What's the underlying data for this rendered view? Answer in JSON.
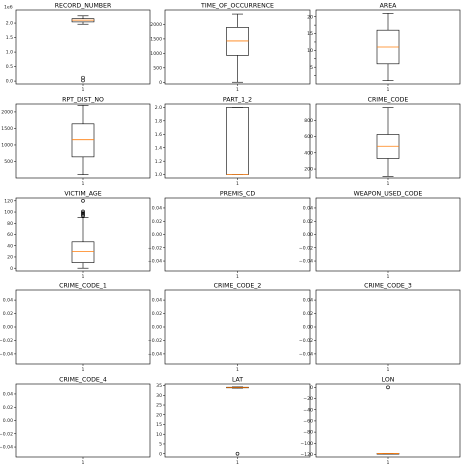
{
  "chart_data": [
    {
      "type": "box",
      "title": "RECORD_NUMBER",
      "offset_text": "1e6",
      "x_tick": "1",
      "ylim": [
        -0.1,
        2.45
      ],
      "y_ticks": [
        0.0,
        0.5,
        1.0,
        1.5,
        2.0
      ],
      "y_tick_labels": [
        "0.0",
        "0.5",
        "1.0",
        "1.5",
        "2.0"
      ],
      "box": {
        "whislo": 1.96,
        "q1": 2.04,
        "med": 2.1,
        "q3": 2.15,
        "whishi": 2.25
      },
      "fliers": [
        0.02,
        0.12
      ]
    },
    {
      "type": "box",
      "title": "TIME_OF_OCCURRENCE",
      "x_tick": "1",
      "ylim": [
        -60,
        2500
      ],
      "y_ticks": [
        0,
        500,
        1000,
        1500,
        2000
      ],
      "y_tick_labels": [
        "0",
        "500",
        "1000",
        "1500",
        "2000"
      ],
      "box": {
        "whislo": 1,
        "q1": 930,
        "med": 1430,
        "q3": 1900,
        "whishi": 2359
      },
      "fliers": []
    },
    {
      "type": "box",
      "title": "AREA",
      "x_tick": "1",
      "ylim": [
        0,
        22
      ],
      "y_ticks": [
        2.5,
        5.0,
        7.5,
        10.0,
        12.5,
        15.0,
        17.5,
        20.0
      ],
      "y_tick_labels": [
        "",
        "5",
        "",
        "10",
        "",
        "15",
        "",
        "20"
      ],
      "box": {
        "whislo": 1,
        "q1": 6,
        "med": 11,
        "q3": 16,
        "whishi": 21
      },
      "fliers": []
    },
    {
      "type": "box",
      "title": "RPT_DIST_NO",
      "x_tick": "1",
      "ylim": [
        0,
        2240
      ],
      "y_ticks": [
        500,
        1000,
        1500,
        2000
      ],
      "y_tick_labels": [
        "500",
        "1000",
        "1500",
        "2000"
      ],
      "box": {
        "whislo": 101,
        "q1": 640,
        "med": 1160,
        "q3": 1640,
        "whishi": 2199
      },
      "fliers": []
    },
    {
      "type": "box",
      "title": "PART_1_2",
      "x_tick": "1",
      "ylim": [
        0.95,
        2.05
      ],
      "y_ticks": [
        1.0,
        1.2,
        1.4,
        1.6,
        1.8,
        2.0
      ],
      "y_tick_labels": [
        "1.0",
        "1.2",
        "1.4",
        "1.6",
        "1.8",
        "2.0"
      ],
      "box": {
        "whislo": 1.0,
        "q1": 1.0,
        "med": 1.0,
        "q3": 2.0,
        "whishi": 2.0
      },
      "fliers": []
    },
    {
      "type": "box",
      "title": "CRIME_CODE",
      "x_tick": "1",
      "ylim": [
        90,
        1000
      ],
      "y_ticks": [
        200,
        400,
        600,
        800
      ],
      "y_tick_labels": [
        "200",
        "400",
        "600",
        "800"
      ],
      "box": {
        "whislo": 110,
        "q1": 330,
        "med": 480,
        "q3": 625,
        "whishi": 956
      },
      "fliers": []
    },
    {
      "type": "box",
      "title": "VICTIM_AGE",
      "x_tick": "1",
      "ylim": [
        -5,
        125
      ],
      "y_ticks": [
        0,
        20,
        40,
        60,
        80,
        100,
        120
      ],
      "y_tick_labels": [
        "0",
        "20",
        "40",
        "60",
        "80",
        "100",
        "120"
      ],
      "box": {
        "whislo": 0,
        "q1": 10,
        "med": 30,
        "q3": 47,
        "whishi": 90
      },
      "fliers": [
        93,
        95,
        97,
        99,
        101,
        120
      ]
    },
    {
      "type": "box",
      "title": "PREMIS_CD",
      "x_tick": "1",
      "ylim": [
        -0.055,
        0.055
      ],
      "y_ticks": [
        -0.04,
        -0.02,
        0.0,
        0.02,
        0.04
      ],
      "y_tick_labels": [
        "−0.04",
        "−0.02",
        "0.00",
        "0.02",
        "0.04"
      ],
      "box": null,
      "fliers": []
    },
    {
      "type": "box",
      "title": "WEAPON_USED_CODE",
      "x_tick": "1",
      "ylim": [
        -0.055,
        0.055
      ],
      "y_ticks": [
        -0.04,
        -0.02,
        0.0,
        0.02,
        0.04
      ],
      "y_tick_labels": [
        "−0.04",
        "−0.02",
        "0.00",
        "0.02",
        "0.04"
      ],
      "box": null,
      "fliers": []
    },
    {
      "type": "box",
      "title": "CRIME_CODE_1",
      "x_tick": "1",
      "ylim": [
        -0.055,
        0.055
      ],
      "y_ticks": [
        -0.04,
        -0.02,
        0.0,
        0.02,
        0.04
      ],
      "y_tick_labels": [
        "−0.04",
        "−0.02",
        "0.00",
        "0.02",
        "0.04"
      ],
      "box": null,
      "fliers": []
    },
    {
      "type": "box",
      "title": "CRIME_CODE_2",
      "x_tick": "1",
      "ylim": [
        -0.055,
        0.055
      ],
      "y_ticks": [
        -0.04,
        -0.02,
        0.0,
        0.02,
        0.04
      ],
      "y_tick_labels": [
        "−0.04",
        "−0.02",
        "0.00",
        "0.02",
        "0.04"
      ],
      "box": null,
      "fliers": []
    },
    {
      "type": "box",
      "title": "CRIME_CODE_3",
      "x_tick": "1",
      "ylim": [
        -0.055,
        0.055
      ],
      "y_ticks": [
        -0.04,
        -0.02,
        0.0,
        0.02,
        0.04
      ],
      "y_tick_labels": [
        "−0.04",
        "−0.02",
        "0.00",
        "0.02",
        "0.04"
      ],
      "box": null,
      "fliers": []
    },
    {
      "type": "box",
      "title": "CRIME_CODE_4",
      "x_tick": "1",
      "ylim": [
        -0.055,
        0.055
      ],
      "y_ticks": [
        -0.04,
        -0.02,
        0.0,
        0.02,
        0.04
      ],
      "y_tick_labels": [
        "−0.04",
        "−0.02",
        "0.00",
        "0.02",
        "0.04"
      ],
      "box": null,
      "fliers": []
    },
    {
      "type": "box",
      "title": "LAT",
      "x_tick": "1",
      "ylim": [
        -1.7,
        35.8
      ],
      "y_ticks": [
        0,
        5,
        10,
        15,
        20,
        25,
        30,
        35
      ],
      "y_tick_labels": [
        "0",
        "5",
        "10",
        "15",
        "20",
        "25",
        "30",
        "35"
      ],
      "box": {
        "whislo": 33.7,
        "q1": 34.0,
        "med": 34.06,
        "q3": 34.15,
        "whishi": 34.3
      },
      "fliers": [
        0
      ]
    },
    {
      "type": "box",
      "title": "LON",
      "x_tick": "1",
      "ylim": [
        -124.5,
        6
      ],
      "y_ticks": [
        0,
        -20,
        -40,
        -60,
        -80,
        -100,
        -120
      ],
      "y_tick_labels": [
        "0",
        "−20",
        "−40",
        "−60",
        "−80",
        "−100",
        "−120"
      ],
      "box": {
        "whislo": -118.7,
        "q1": -118.45,
        "med": -118.35,
        "q3": -118.27,
        "whishi": -118.15
      },
      "fliers": [
        0
      ]
    }
  ],
  "colors": {
    "median": "#ff7f0e",
    "box": "#000000",
    "flier": "#000000"
  }
}
